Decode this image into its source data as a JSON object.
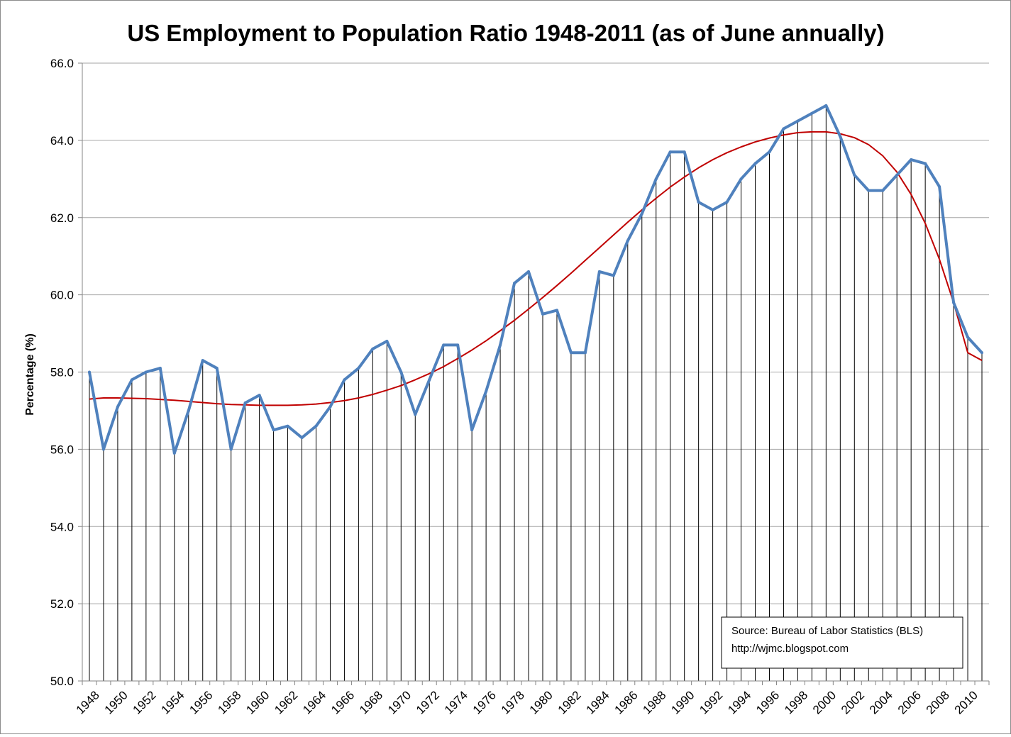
{
  "chart_data": {
    "type": "line",
    "title": "US Employment to Population Ratio 1948-2011 (as of June annually)",
    "xlabel": "",
    "ylabel": "Percentage (%)",
    "ylim": [
      50,
      66
    ],
    "y_ticks": [
      "50.0",
      "52.0",
      "54.0",
      "56.0",
      "58.0",
      "60.0",
      "62.0",
      "64.0",
      "66.0"
    ],
    "x_tick_labels": [
      "1948",
      "1950",
      "1952",
      "1954",
      "1956",
      "1958",
      "1960",
      "1962",
      "1964",
      "1966",
      "1968",
      "1970",
      "1972",
      "1974",
      "1976",
      "1978",
      "1980",
      "1982",
      "1984",
      "1986",
      "1988",
      "1990",
      "1992",
      "1994",
      "1996",
      "1998",
      "2000",
      "2002",
      "2004",
      "2006",
      "2008",
      "2010"
    ],
    "grid": {
      "horizontal": true,
      "vertical_drop_lines": true
    },
    "colors": {
      "data_line": "#4f81bd",
      "trend_line": "#c00000",
      "grid": "#a6a6a6",
      "drop_lines": "#000000"
    },
    "x": [
      1948,
      1949,
      1950,
      1951,
      1952,
      1953,
      1954,
      1955,
      1956,
      1957,
      1958,
      1959,
      1960,
      1961,
      1962,
      1963,
      1964,
      1965,
      1966,
      1967,
      1968,
      1969,
      1970,
      1971,
      1972,
      1973,
      1974,
      1975,
      1976,
      1977,
      1978,
      1979,
      1980,
      1981,
      1982,
      1983,
      1984,
      1985,
      1986,
      1987,
      1988,
      1989,
      1990,
      1991,
      1992,
      1993,
      1994,
      1995,
      1996,
      1997,
      1998,
      1999,
      2000,
      2001,
      2002,
      2003,
      2004,
      2005,
      2006,
      2007,
      2008,
      2009,
      2010,
      2011
    ],
    "series": [
      {
        "values": [
          58.0,
          56.0,
          57.1,
          57.8,
          58.0,
          58.1,
          55.9,
          57.0,
          58.3,
          58.1,
          56.0,
          57.2,
          57.4,
          56.5,
          56.6,
          56.3,
          56.6,
          57.1,
          57.8,
          58.1,
          58.6,
          58.8,
          58.0,
          56.9,
          57.8,
          58.7,
          58.7,
          56.5,
          57.5,
          58.7,
          60.3,
          60.6,
          59.5,
          59.6,
          58.5,
          58.5,
          60.6,
          60.5,
          61.4,
          62.1,
          63.0,
          63.7,
          63.7,
          62.4,
          62.2,
          62.4,
          63.0,
          63.4,
          63.7,
          64.3,
          64.5,
          64.7,
          64.9,
          64.1,
          63.1,
          62.7,
          62.7,
          63.1,
          63.5,
          63.4,
          62.8,
          59.8,
          58.9,
          58.5
        ]
      },
      {
        "values": [
          57.3,
          57.33,
          57.33,
          57.32,
          57.31,
          57.29,
          57.27,
          57.24,
          57.21,
          57.18,
          57.16,
          57.15,
          57.14,
          57.14,
          57.14,
          57.15,
          57.17,
          57.21,
          57.26,
          57.33,
          57.42,
          57.53,
          57.65,
          57.8,
          57.96,
          58.14,
          58.35,
          58.57,
          58.81,
          59.07,
          59.34,
          59.63,
          59.93,
          60.24,
          60.56,
          60.89,
          61.22,
          61.55,
          61.88,
          62.2,
          62.5,
          62.79,
          63.05,
          63.29,
          63.5,
          63.68,
          63.83,
          63.96,
          64.06,
          64.14,
          64.2,
          64.22,
          64.22,
          64.17,
          64.07,
          63.89,
          63.6,
          63.18,
          62.6,
          61.85,
          60.92,
          59.8,
          58.5,
          58.3
        ]
      }
    ],
    "annotation": {
      "line1": "Source: Bureau of Labor Statistics (BLS)",
      "line2": "http://wjmc.blogspot.com",
      "position": "bottom-right"
    }
  }
}
